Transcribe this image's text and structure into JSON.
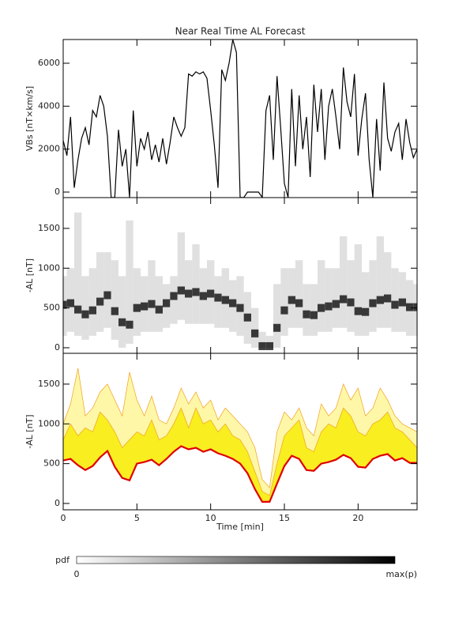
{
  "chart_data": [
    {
      "type": "line",
      "title": "Near Real Time AL Forecast",
      "ylabel": "VBs [nT×km/s]",
      "color": "#000000",
      "xlim": [
        0,
        24
      ],
      "ylim": [
        -258,
        7104
      ],
      "yticks": [
        0,
        2000,
        4000,
        6000
      ],
      "x": [
        0,
        0.25,
        0.5,
        0.75,
        1,
        1.25,
        1.5,
        1.75,
        2,
        2.25,
        2.5,
        2.75,
        3,
        3.25,
        3.5,
        3.75,
        4,
        4.25,
        4.5,
        4.75,
        5,
        5.25,
        5.5,
        5.75,
        6,
        6.25,
        6.5,
        6.75,
        7,
        7.25,
        7.5,
        7.75,
        8,
        8.25,
        8.5,
        8.75,
        9,
        9.25,
        9.5,
        9.75,
        10,
        10.25,
        10.5,
        10.75,
        11,
        11.25,
        11.5,
        11.75,
        12,
        12.25,
        12.5,
        12.75,
        13,
        13.25,
        13.5,
        13.75,
        14,
        14.25,
        14.5,
        14.75,
        15,
        15.25,
        15.5,
        15.75,
        16,
        16.25,
        16.5,
        16.75,
        17,
        17.25,
        17.5,
        17.75,
        18,
        18.25,
        18.5,
        18.75,
        19,
        19.25,
        19.5,
        19.75,
        20,
        20.25,
        20.5,
        20.75,
        21,
        21.25,
        21.5,
        21.75,
        22,
        22.25,
        22.5,
        22.75,
        23,
        23.25,
        23.5,
        23.75,
        24
      ],
      "values": [
        2400,
        1700,
        3500,
        200,
        1500,
        2500,
        3000,
        2200,
        3800,
        3500,
        4500,
        4000,
        2600,
        -250,
        -250,
        2900,
        1200,
        2000,
        -250,
        3800,
        1200,
        2500,
        2000,
        2800,
        1500,
        2200,
        1400,
        2500,
        1300,
        2300,
        3500,
        3000,
        2600,
        3000,
        5500,
        5400,
        5600,
        5500,
        5600,
        5300,
        3800,
        2200,
        200,
        5700,
        5200,
        6000,
        7100,
        6500,
        -250,
        -250,
        0,
        0,
        0,
        0,
        -250,
        3800,
        4500,
        1500,
        5400,
        3000,
        400,
        -250,
        4800,
        1200,
        4500,
        2000,
        3500,
        700,
        5000,
        2800,
        4800,
        1500,
        4000,
        4800,
        3500,
        2000,
        5800,
        4200,
        3500,
        5500,
        1700,
        3400,
        4600,
        1500,
        -250,
        3400,
        1000,
        5100,
        2500,
        1900,
        2800,
        3200,
        1500,
        3400,
        2300,
        1600,
        2000
      ]
    },
    {
      "type": "density",
      "ylabel": "-AL [nT]",
      "color": "#000000",
      "xlim": [
        0,
        24
      ],
      "ylim": [
        -70,
        1887
      ],
      "yticks": [
        0,
        500,
        1000,
        1500
      ],
      "x": [
        0,
        0.5,
        1,
        1.5,
        2,
        2.5,
        3,
        3.5,
        4,
        4.5,
        5,
        5.5,
        6,
        6.5,
        7,
        7.5,
        8,
        8.5,
        9,
        9.5,
        10,
        10.5,
        11,
        11.5,
        12,
        12.5,
        13,
        13.5,
        14,
        14.5,
        15,
        15.5,
        16,
        16.5,
        17,
        17.5,
        18,
        18.5,
        19,
        19.5,
        20,
        20.5,
        21,
        21.5,
        22,
        22.5,
        23,
        23.5,
        24
      ],
      "median": [
        540,
        560,
        480,
        420,
        470,
        580,
        660,
        460,
        320,
        290,
        500,
        520,
        550,
        480,
        560,
        650,
        720,
        680,
        700,
        650,
        680,
        630,
        600,
        560,
        500,
        380,
        180,
        20,
        20,
        250,
        470,
        600,
        560,
        420,
        410,
        500,
        520,
        550,
        610,
        570,
        460,
        450,
        560,
        600,
        620,
        540,
        570,
        510,
        510
      ],
      "low": [
        150,
        200,
        150,
        100,
        150,
        200,
        250,
        100,
        0,
        50,
        150,
        200,
        200,
        200,
        250,
        300,
        350,
        300,
        300,
        300,
        300,
        250,
        250,
        200,
        150,
        50,
        0,
        0,
        0,
        0,
        150,
        250,
        250,
        150,
        150,
        200,
        200,
        250,
        250,
        200,
        150,
        150,
        200,
        250,
        250,
        200,
        200,
        150,
        150
      ],
      "high": [
        900,
        1000,
        1700,
        900,
        1000,
        1200,
        1200,
        1100,
        900,
        1600,
        1000,
        900,
        1100,
        900,
        800,
        900,
        1450,
        1100,
        1300,
        1000,
        1100,
        900,
        1000,
        850,
        900,
        700,
        500,
        200,
        150,
        800,
        1000,
        1000,
        1100,
        800,
        800,
        1100,
        1000,
        1000,
        1400,
        1100,
        1300,
        950,
        1100,
        1400,
        1200,
        1000,
        950,
        850,
        800
      ]
    },
    {
      "type": "band",
      "ylabel": "-AL [nT]",
      "xlabel": "Time [min]",
      "xlim": [
        0,
        24
      ],
      "xticks": [
        0,
        5,
        10,
        15,
        20
      ],
      "ylim": [
        -80,
        1887
      ],
      "yticks": [
        0,
        500,
        1000,
        1500
      ],
      "x": [
        0,
        0.5,
        1,
        1.5,
        2,
        2.5,
        3,
        3.5,
        4,
        4.5,
        5,
        5.5,
        6,
        6.5,
        7,
        7.5,
        8,
        8.5,
        9,
        9.5,
        10,
        10.5,
        11,
        11.5,
        12,
        12.5,
        13,
        13.5,
        14,
        14.5,
        15,
        15.5,
        16,
        16.5,
        17,
        17.5,
        18,
        18.5,
        19,
        19.5,
        20,
        20.5,
        21,
        21.5,
        22,
        22.5,
        23,
        23.5,
        24
      ],
      "series": [
        {
          "color": "#e00000",
          "values": [
            540,
            560,
            480,
            420,
            470,
            580,
            660,
            460,
            320,
            290,
            500,
            520,
            550,
            480,
            560,
            650,
            720,
            680,
            700,
            650,
            680,
            630,
            600,
            560,
            500,
            380,
            180,
            20,
            20,
            250,
            470,
            600,
            560,
            420,
            410,
            500,
            520,
            550,
            610,
            570,
            460,
            450,
            560,
            600,
            620,
            540,
            570,
            510,
            510
          ]
        },
        {
          "color": "#f8ee20",
          "values": [
            800,
            1000,
            850,
            950,
            900,
            1150,
            1050,
            900,
            700,
            800,
            900,
            850,
            1050,
            800,
            850,
            1000,
            1200,
            950,
            1200,
            1000,
            1050,
            900,
            1000,
            850,
            800,
            650,
            400,
            150,
            100,
            500,
            850,
            950,
            1050,
            700,
            650,
            900,
            1000,
            950,
            1200,
            1100,
            900,
            850,
            1000,
            1050,
            1150,
            950,
            900,
            800,
            700
          ]
        },
        {
          "color": "#fff7a8",
          "values": [
            1000,
            1250,
            1700,
            1100,
            1200,
            1400,
            1500,
            1300,
            1100,
            1650,
            1300,
            1100,
            1350,
            1050,
            1000,
            1200,
            1450,
            1250,
            1400,
            1200,
            1300,
            1050,
            1200,
            1100,
            1000,
            900,
            700,
            300,
            200,
            900,
            1150,
            1050,
            1200,
            950,
            850,
            1250,
            1100,
            1200,
            1500,
            1300,
            1450,
            1100,
            1200,
            1450,
            1300,
            1100,
            1000,
            950,
            900
          ]
        }
      ]
    }
  ],
  "colorbar": {
    "label": "pdf",
    "min_label": "0",
    "max_label": "max(p)"
  }
}
